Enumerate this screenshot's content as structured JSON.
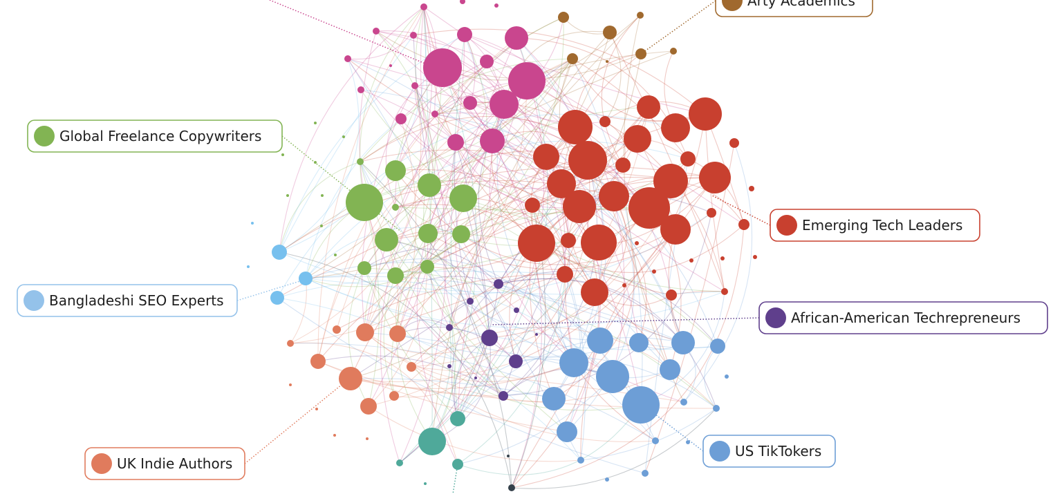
{
  "groups": [
    {
      "label": "Arty Academics",
      "color": "#a0692e"
    },
    {
      "label": "Global Freelance Copywriters",
      "color": "#82b453"
    },
    {
      "label": "Emerging Tech Leaders",
      "color": "#c8402f"
    },
    {
      "label": "Bangladeshi SEO Experts",
      "color": "#94c2ea"
    },
    {
      "label": "African-American Techrepreneurs",
      "color": "#5f3f8c"
    },
    {
      "label": "UK Indie Authors",
      "color": "#e07b5d"
    },
    {
      "label": "US TikTokers",
      "color": "#6d9ed6"
    }
  ]
}
